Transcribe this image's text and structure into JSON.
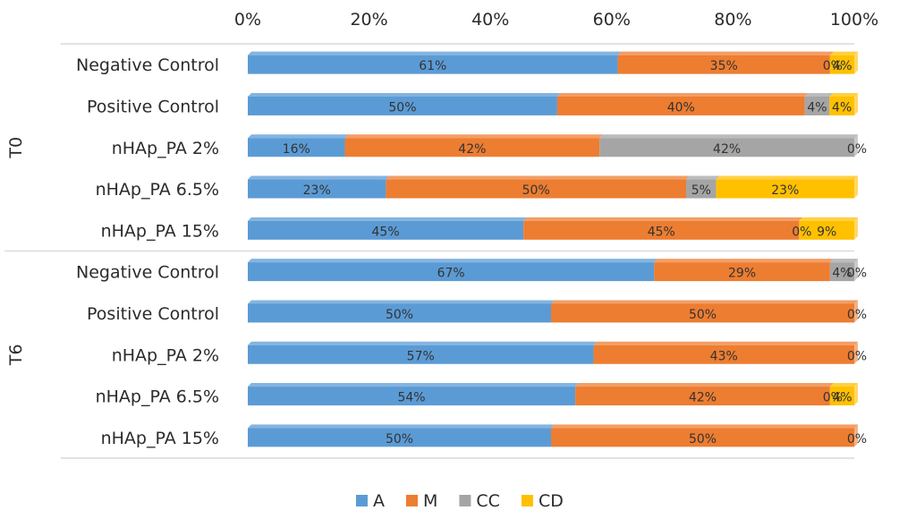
{
  "chart_data": {
    "type": "bar",
    "orientation": "horizontal",
    "stacked": "percent",
    "xlim": [
      0,
      100
    ],
    "x_ticks": [
      "0%",
      "20%",
      "40%",
      "60%",
      "80%",
      "100%"
    ],
    "groups": [
      {
        "name": "T0",
        "categories": [
          "Negative Control",
          "Positive Control",
          "nHAp_PA 2%",
          "nHAp_PA 6.5%",
          "nHAp_PA 15%"
        ]
      },
      {
        "name": "T6",
        "categories": [
          "Negative Control",
          "Positive Control",
          "nHAp_PA 2%",
          "nHAp_PA 6.5%",
          "nHAp_PA 15%"
        ]
      }
    ],
    "series": [
      {
        "name": "A",
        "color": "#5b9bd5",
        "values": [
          61,
          50,
          16,
          23,
          45,
          67,
          50,
          57,
          54,
          50
        ],
        "labels": [
          "61%",
          "50%",
          "16%",
          "23%",
          "45%",
          "67%",
          "50%",
          "57%",
          "54%",
          "50%"
        ]
      },
      {
        "name": "M",
        "color": "#ed7d31",
        "values": [
          35,
          40,
          42,
          50,
          45,
          29,
          50,
          43,
          42,
          50
        ],
        "labels": [
          "35%",
          "40%",
          "42%",
          "50%",
          "45%",
          "29%",
          "50%",
          "43%",
          "42%",
          "50%"
        ]
      },
      {
        "name": "CC",
        "color": "#a5a5a5",
        "values": [
          0,
          4,
          42,
          5,
          0,
          4,
          0,
          0,
          0,
          0
        ],
        "labels": [
          "0%",
          "4%",
          "42%",
          "5%",
          "0%",
          "4%",
          "0%",
          "0%",
          "0%",
          "0%"
        ]
      },
      {
        "name": "CD",
        "color": "#ffc000",
        "values": [
          4,
          4,
          0,
          23,
          9,
          0,
          0,
          0,
          4,
          0
        ],
        "labels": [
          "4%",
          "4%",
          "0%",
          "23%",
          "9%",
          "0%",
          "",
          "",
          "4%",
          ""
        ]
      }
    ],
    "legend_position": "bottom",
    "grid": false
  }
}
